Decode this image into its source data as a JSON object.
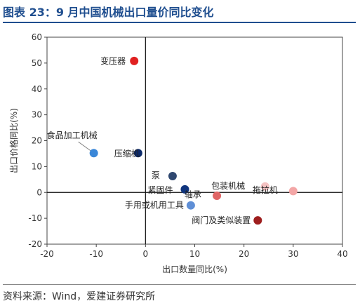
{
  "title": "图表 23：9 月中国机械出口量价同比变化",
  "source": "资料来源：Wind，爱建证券研究所",
  "chart_data": {
    "type": "scatter",
    "xlabel": "出口数量同比(%)",
    "ylabel": "出口价格同比(%)",
    "xlim": [
      -20,
      40
    ],
    "ylim": [
      -20,
      60
    ],
    "xticks": [
      -20,
      -10,
      0,
      10,
      20,
      30,
      40
    ],
    "yticks": [
      -20,
      -10,
      0,
      10,
      20,
      30,
      40,
      50,
      60
    ],
    "grid": false,
    "points": [
      {
        "label": "变压器",
        "x": -2.3,
        "y": 50.8,
        "color": "#e02020"
      },
      {
        "label": "食品加工机械",
        "x": -10.5,
        "y": 15.2,
        "color": "#3a87d8"
      },
      {
        "label": "压缩机",
        "x": -1.5,
        "y": 15.2,
        "color": "#0c2a6a"
      },
      {
        "label": "泵",
        "x": 5.5,
        "y": 6.3,
        "color": "#2f4870"
      },
      {
        "label": "紧固件",
        "x": 8.0,
        "y": 1.2,
        "color": "#10357e"
      },
      {
        "label": "轴承",
        "x": 9.2,
        "y": -5.0,
        "color": "#5f8fd6"
      },
      {
        "label": "手用或机用工具",
        "x": 9.2,
        "y": -5.0,
        "color": "#5f8fd6"
      },
      {
        "label": "包装机械",
        "x": 14.5,
        "y": -1.3,
        "color": "#e06565"
      },
      {
        "label": "拖拉机",
        "x": 24.3,
        "y": 2.3,
        "color": "#f4c2c2"
      },
      {
        "label": "",
        "x": 30.0,
        "y": 0.5,
        "color": "#f3a6a6"
      },
      {
        "label": "阀门及类似装置",
        "x": 22.8,
        "y": -10.8,
        "color": "#9e1e1e"
      }
    ]
  }
}
